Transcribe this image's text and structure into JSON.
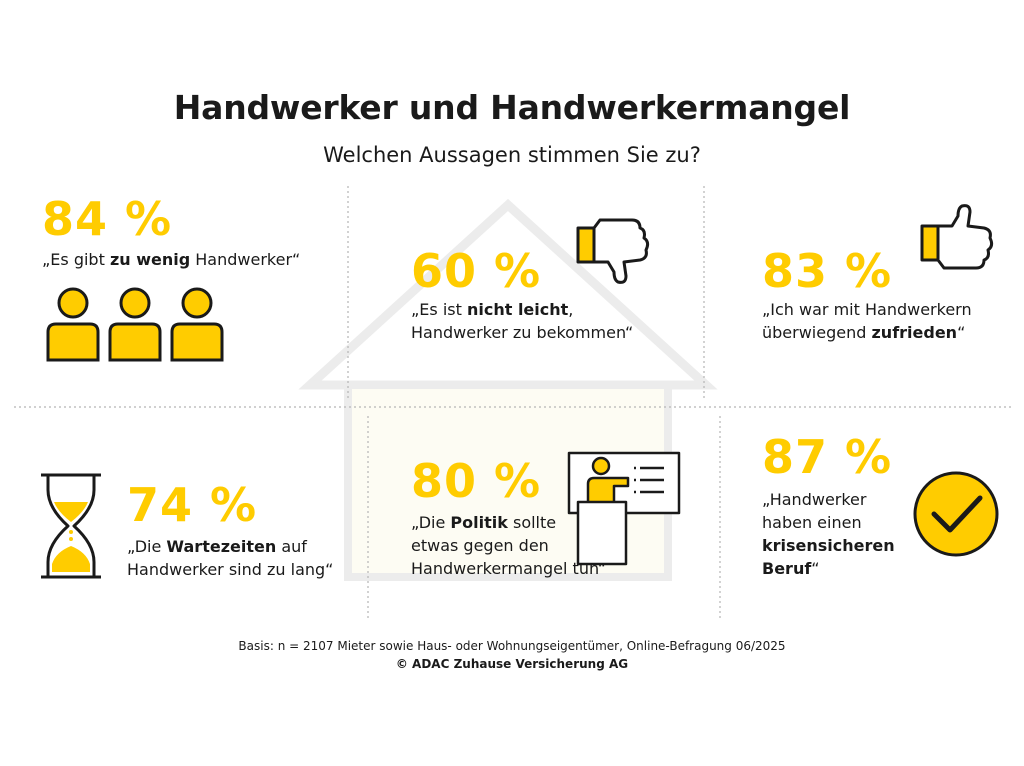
{
  "title": "Handwerker und Handwerkermangel",
  "subtitle": "Welchen Aussagen stimmen Sie zu?",
  "chart_data": {
    "type": "table",
    "items": [
      {
        "value": 84,
        "label": "84 %",
        "parts": [
          "„Es gibt ",
          "zu wenig",
          " Handwerker“"
        ],
        "icon": "people-icon"
      },
      {
        "value": 60,
        "label": "60 %",
        "parts": [
          "„Es ist ",
          "nicht leicht",
          ",\nHandwerker zu bekommen“"
        ],
        "icon": "thumbs-down-icon"
      },
      {
        "value": 83,
        "label": "83 %",
        "parts": [
          "„Ich war mit Handwerkern\nüberwiegend ",
          "zufrieden",
          "“"
        ],
        "icon": "thumbs-up-icon"
      },
      {
        "value": 74,
        "label": "74 %",
        "parts": [
          "„Die ",
          "Wartezeiten",
          " auf\nHandwerker sind zu lang“"
        ],
        "icon": "hourglass-icon"
      },
      {
        "value": 80,
        "label": "80 %",
        "parts": [
          "„Die ",
          "Politik",
          " sollte\netwas gegen den\nHandwerkermangel tun“"
        ],
        "icon": "presentation-icon"
      },
      {
        "value": 87,
        "label": "87 %",
        "parts": [
          "„Handwerker\nhaben einen\n",
          "krisensicheren\nBeruf",
          "“"
        ],
        "icon": "checkmark-icon"
      }
    ]
  },
  "footer": {
    "basis": "Basis: n = 2107 Mieter sowie Haus- oder Wohnungseigentümer, Online-Befragung 06/2025",
    "copyright": "© ADAC Zuhause Versicherung AG"
  },
  "colors": {
    "accent": "#ffcc00",
    "text": "#1a1a1a",
    "divider": "#b5b5b5",
    "house": "#e6e6e6"
  }
}
